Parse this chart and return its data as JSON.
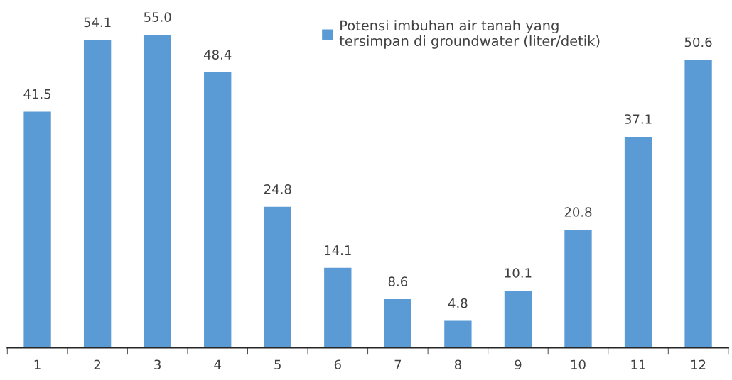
{
  "chart_data": {
    "type": "bar",
    "categories": [
      "1",
      "2",
      "3",
      "4",
      "5",
      "6",
      "7",
      "8",
      "9",
      "10",
      "11",
      "12"
    ],
    "series": [
      {
        "name": "Potensi imbuhan air tanah yang\ntersimpan di groundwater (liter/detik)",
        "color": "#5b9bd5",
        "values": [
          41.5,
          54.1,
          55.0,
          48.4,
          24.8,
          14.1,
          8.6,
          4.8,
          10.1,
          20.8,
          37.1,
          50.6
        ],
        "value_labels": [
          "41.5",
          "54.1",
          "55.0",
          "48.4",
          "24.8",
          "14.1",
          "8.6",
          "4.8",
          "10.1",
          "20.8",
          "37.1",
          "50.6"
        ]
      }
    ],
    "legend": "top",
    "grid": false
  }
}
